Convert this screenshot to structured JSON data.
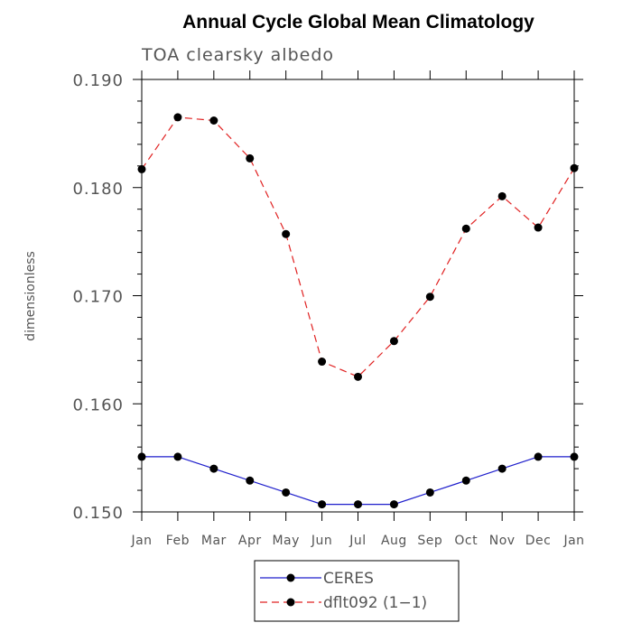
{
  "chart_data": {
    "type": "line",
    "title": "Annual Cycle Global Mean Climatology",
    "subtitle": "TOA clearsky albedo",
    "xlabel": "",
    "ylabel": "dimensionless",
    "categories": [
      "Jan",
      "Feb",
      "Mar",
      "Apr",
      "May",
      "Jun",
      "Jul",
      "Aug",
      "Sep",
      "Oct",
      "Nov",
      "Dec",
      "Jan"
    ],
    "ylim": [
      0.15,
      0.19
    ],
    "yticks": [
      "0.150",
      "0.160",
      "0.170",
      "0.180",
      "0.190"
    ],
    "grid": false,
    "legend_position": "bottom-center",
    "series": [
      {
        "name": "CERES",
        "color": "#1f1fcc",
        "line_style": "solid",
        "marker": "filled-circle",
        "values": [
          0.1551,
          0.1551,
          0.154,
          0.1529,
          0.1518,
          0.1507,
          0.1507,
          0.1507,
          0.1518,
          0.1529,
          0.154,
          0.1551,
          0.1551
        ]
      },
      {
        "name": "dflt092 (1−1)",
        "color": "#e02020",
        "line_style": "dashed",
        "marker": "filled-circle",
        "values": [
          0.1817,
          0.1865,
          0.1862,
          0.1827,
          0.1757,
          0.1639,
          0.1625,
          0.1658,
          0.1699,
          0.1762,
          0.1792,
          0.1763,
          0.1818
        ]
      }
    ]
  }
}
